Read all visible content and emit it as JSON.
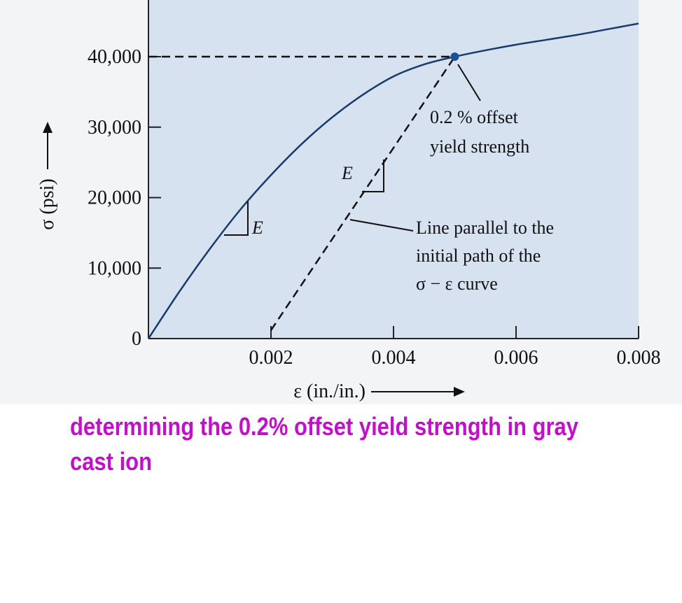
{
  "chart_data": {
    "type": "line",
    "xlabel": "ε (in./in.)",
    "ylabel": "σ (psi)",
    "xlim": [
      0,
      0.008
    ],
    "ylim": [
      0,
      48000
    ],
    "x_ticks": [
      {
        "value": 0.002,
        "label": "0.002"
      },
      {
        "value": 0.004,
        "label": "0.004"
      },
      {
        "value": 0.006,
        "label": "0.006"
      },
      {
        "value": 0.008,
        "label": "0.008"
      }
    ],
    "y_ticks": [
      {
        "value": 0,
        "label": "0"
      },
      {
        "value": 10000,
        "label": "10,000"
      },
      {
        "value": 20000,
        "label": "20,000"
      },
      {
        "value": 30000,
        "label": "30,000"
      },
      {
        "value": 40000,
        "label": "40,000"
      }
    ],
    "curve": {
      "x": [
        0,
        0.0005,
        0.001,
        0.0015,
        0.002,
        0.0025,
        0.003,
        0.0035,
        0.004,
        0.0045,
        0.005,
        0.0055,
        0.006,
        0.0065,
        0.007,
        0.0075,
        0.008
      ],
      "y": [
        0,
        6600,
        12700,
        18300,
        23200,
        27600,
        31400,
        34600,
        37200,
        38900,
        40000,
        40900,
        41700,
        42400,
        43100,
        43900,
        44700
      ]
    },
    "offset_line": {
      "x": [
        0.002,
        0.005
      ],
      "y": [
        0,
        40000
      ]
    },
    "yield_point": {
      "x": 0.005,
      "y": 40000
    },
    "yield_reference_y": 40000,
    "annotations": {
      "yield": [
        "0.2 % offset",
        "yield strength"
      ],
      "parallel": [
        "Line parallel to the",
        "initial path of the",
        "σ − ε curve"
      ],
      "slope_label": "E"
    },
    "colors": {
      "background": "#d6e2ef",
      "curve": "#1a3a6c",
      "point": "#1f4f96",
      "axes": "#222222"
    }
  },
  "caption": "determining the 0.2% offset yield strength in gray cast ion"
}
